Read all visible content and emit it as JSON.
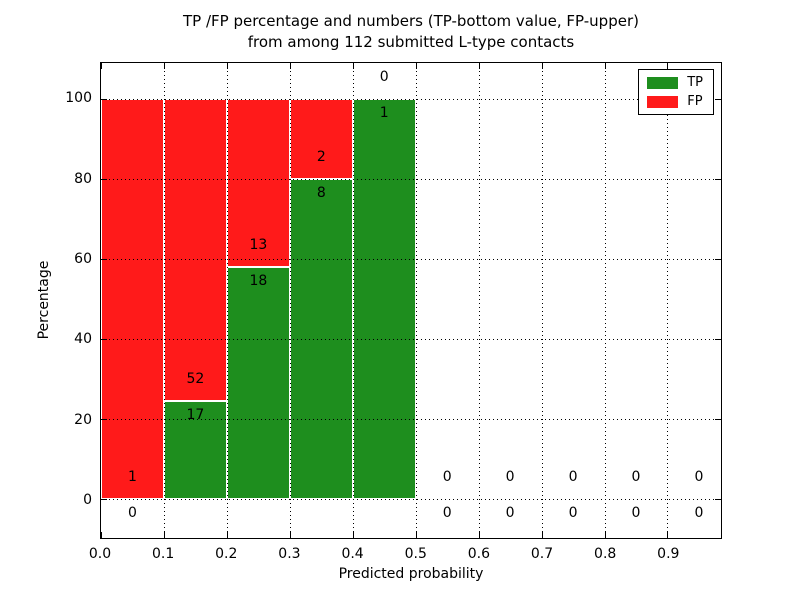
{
  "figure": {
    "title_line1": "TP /FP percentage and numbers (TP-bottom value, FP-upper)",
    "title_line2": "from among 112 submitted L-type contacts"
  },
  "chart_data": {
    "type": "bar",
    "stacked": true,
    "normalized_to_percent": true,
    "title": "TP /FP percentage and numbers (TP-bottom value, FP-upper)\nfrom among 112 submitted L-type contacts",
    "xlabel": "Predicted probability",
    "ylabel": "Percentage",
    "total_contacts": 112,
    "bin_width": 0.1,
    "bin_starts": [
      0.0,
      0.1,
      0.2,
      0.3,
      0.4,
      0.5,
      0.6,
      0.7,
      0.8,
      0.9
    ],
    "x_tick_values": [
      0.0,
      0.1,
      0.2,
      0.3,
      0.4,
      0.5,
      0.6,
      0.7,
      0.8,
      0.9
    ],
    "x_tick_labels": [
      "0.0",
      "0.1",
      "0.2",
      "0.3",
      "0.4",
      "0.5",
      "0.6",
      "0.7",
      "0.8",
      "0.9"
    ],
    "y_tick_values": [
      0,
      20,
      40,
      60,
      80,
      100
    ],
    "y_tick_labels": [
      "0",
      "20",
      "40",
      "60",
      "80",
      "100"
    ],
    "xlim": [
      0,
      0.985
    ],
    "ylim": [
      -9.7,
      109
    ],
    "grid": true,
    "grid_style": "dotted",
    "legend_position": "upper right",
    "series": [
      {
        "name": "TP",
        "color": "#1e8e1e",
        "values": [
          0,
          17,
          18,
          8,
          1,
          0,
          0,
          0,
          0,
          0
        ]
      },
      {
        "name": "FP",
        "color": "#ff1a1a",
        "values": [
          1,
          52,
          13,
          2,
          0,
          0,
          0,
          0,
          0,
          0
        ]
      }
    ],
    "tp_percent_by_bin": [
      0,
      24.6,
      58.1,
      80,
      100,
      0,
      0,
      0,
      0,
      0
    ],
    "bar_edge_color": "#ffffff"
  }
}
